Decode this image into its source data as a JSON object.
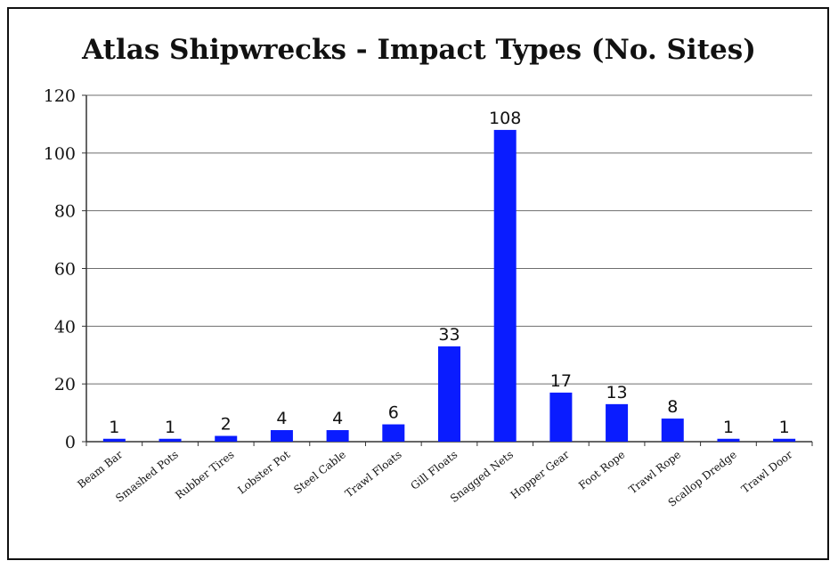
{
  "chart_data": {
    "type": "bar",
    "title": "Atlas Shipwrecks - Impact Types (No. Sites)",
    "xlabel": "",
    "ylabel": "",
    "categories": [
      "Beam Bar",
      "Smashed Pots",
      "Rubber Tires",
      "Lobster Pot",
      "Steel Cable",
      "Trawl Floats",
      "Gill Floats",
      "Snagged Nets",
      "Hopper Gear",
      "Foot Rope",
      "Trawl Rope",
      "Scallop Dredge",
      "Trawl Door"
    ],
    "values": [
      1,
      1,
      2,
      4,
      4,
      6,
      33,
      108,
      17,
      13,
      8,
      1,
      1
    ],
    "data_labels": [
      "1",
      "1",
      "2",
      "4",
      "4",
      "6",
      "33",
      "108",
      "17",
      "13",
      "8",
      "1",
      "1"
    ],
    "ylim": [
      0,
      120
    ],
    "yticks": [
      0,
      20,
      40,
      60,
      80,
      100,
      120
    ],
    "ytick_labels": [
      "0",
      "20",
      "40",
      "60",
      "80",
      "100",
      "120"
    ],
    "grid": true,
    "legend": "none",
    "bar_color": "#0a1cff"
  }
}
